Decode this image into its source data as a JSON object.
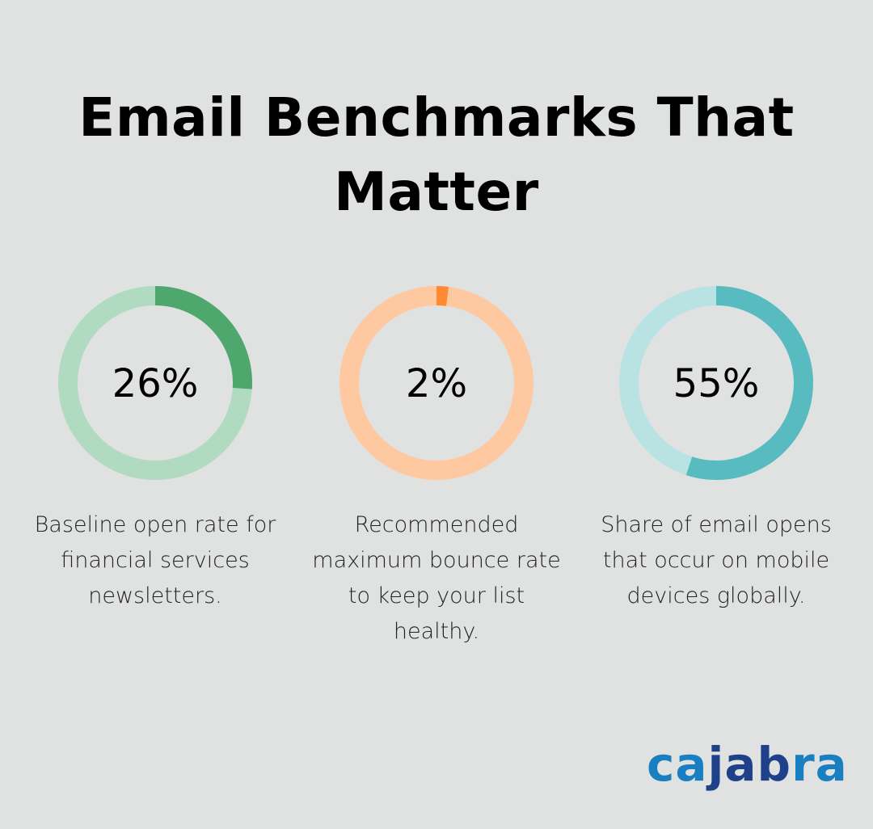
{
  "title": "Email Benchmarks That Matter",
  "chart_data": {
    "type": "donut",
    "items": [
      {
        "value": 26,
        "label": "26%",
        "description": "Baseline open rate for financial services newsletters.",
        "color": "#4ea86e",
        "track_color": "#b0dbc1"
      },
      {
        "value": 2,
        "label": "2%",
        "description": "Recommended maximum bounce rate to keep your list healthy.",
        "color": "#ff8a33",
        "track_color": "#fec9a1"
      },
      {
        "value": 55,
        "label": "55%",
        "description": "Share of email opens that occur on mobile devices globally.",
        "color": "#58bbbf",
        "track_color": "#b9e2e3"
      }
    ]
  },
  "logo": {
    "part1": "ca",
    "part2": "jab",
    "part3": "ra",
    "text": "cajabra"
  }
}
